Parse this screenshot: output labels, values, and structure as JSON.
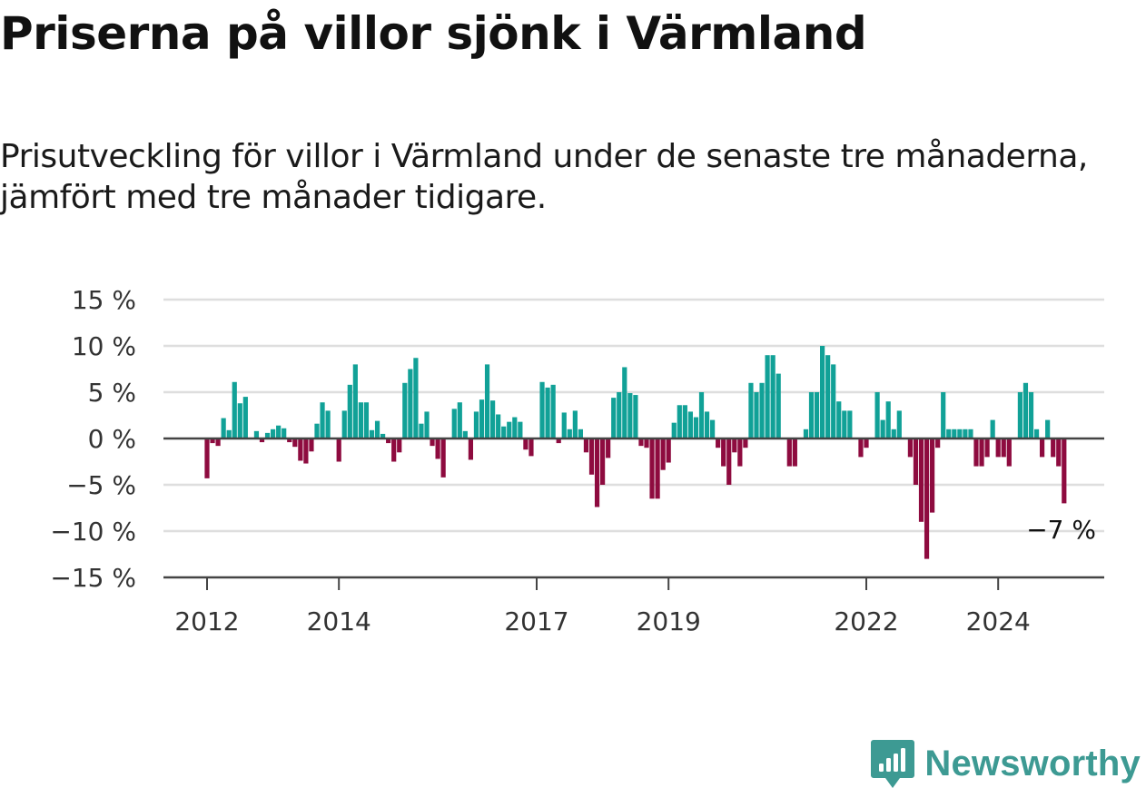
{
  "header": {
    "title": "Priserna på villor sjönk i Värmland",
    "subtitle": "Prisutveckling för villor i Värmland under de senaste tre månaderna, jämfört med tre månader tidigare."
  },
  "brand": {
    "name": "Newsworthy",
    "icon": "newsworthy-logo-icon",
    "color": "#3d9a93"
  },
  "chart_data": {
    "type": "bar",
    "title": "Priserna på villor sjönk i Värmland",
    "subtitle": "Prisutveckling för villor i Värmland under de senaste tre månaderna, jämfört med tre månader tidigare.",
    "xlabel": "",
    "ylabel": "",
    "ylim": [
      -15,
      15
    ],
    "y_ticks": [
      15,
      10,
      5,
      0,
      -5,
      -10,
      -15
    ],
    "y_tick_labels": [
      "15 %",
      "10 %",
      "5 %",
      "0 %",
      "−5 %",
      "−10 %",
      "−15 %"
    ],
    "x_tick_labels": [
      {
        "label": "2012",
        "index": 0
      },
      {
        "label": "2014",
        "index": 24
      },
      {
        "label": "2017",
        "index": 60
      },
      {
        "label": "2019",
        "index": 84
      },
      {
        "label": "2022",
        "index": 120
      },
      {
        "label": "2024",
        "index": 144
      }
    ],
    "start": "2012-01",
    "frequency": "monthly",
    "positive_color": "#11a197",
    "negative_color": "#8e0b3f",
    "grid": true,
    "annotation": {
      "text": "−7 %",
      "value": -7
    },
    "values": [
      -4.3,
      -0.5,
      -0.8,
      2.2,
      0.9,
      6.1,
      3.8,
      4.5,
      0,
      0.8,
      -0.4,
      0.6,
      1.0,
      1.4,
      1.1,
      -0.4,
      -0.9,
      -2.4,
      -2.7,
      -1.4,
      1.6,
      3.9,
      3.0,
      0,
      -2.5,
      3.0,
      5.8,
      8.0,
      3.9,
      3.9,
      0.9,
      1.9,
      0.5,
      -0.5,
      -2.5,
      -1.5,
      6.0,
      7.5,
      8.7,
      1.6,
      2.9,
      -0.8,
      -2.2,
      -4.2,
      0,
      3.2,
      3.9,
      0.8,
      -2.3,
      2.9,
      4.2,
      8.0,
      4.1,
      2.6,
      1.3,
      1.8,
      2.3,
      1.8,
      -1.2,
      -1.9,
      0,
      6.1,
      5.5,
      5.8,
      -0.5,
      2.8,
      1.0,
      3.0,
      1.0,
      -1.5,
      -3.9,
      -7.4,
      -5.0,
      -2.1,
      4.4,
      5.0,
      7.7,
      4.9,
      4.7,
      -0.8,
      -1.0,
      -6.5,
      -6.5,
      -3.4,
      -2.6,
      1.7,
      3.6,
      3.6,
      2.9,
      2.3,
      5.0,
      2.9,
      2.0,
      -1.0,
      -3.0,
      -5.0,
      -1.5,
      -3.0,
      -1.0,
      6.0,
      5.0,
      6.0,
      9.0,
      9.0,
      7.0,
      0,
      -3.0,
      -3.0,
      0,
      1.0,
      5.0,
      5.0,
      10.0,
      9.0,
      8.0,
      4.0,
      3.0,
      3.0,
      0,
      -2.0,
      -1.0,
      0,
      5.0,
      2.0,
      4.0,
      1.0,
      3.0,
      0,
      -2.0,
      -5.0,
      -9.0,
      -13.0,
      -8.0,
      -1.0,
      5.0,
      1.0,
      1.0,
      1.0,
      1.0,
      1.0,
      -3.0,
      -3.0,
      -2.0,
      2.0,
      -2.0,
      -2.0,
      -3.0,
      0,
      5.0,
      6.0,
      5.0,
      1.0,
      -2.0,
      2.0,
      -2.0,
      -3.0,
      -7.0
    ]
  }
}
